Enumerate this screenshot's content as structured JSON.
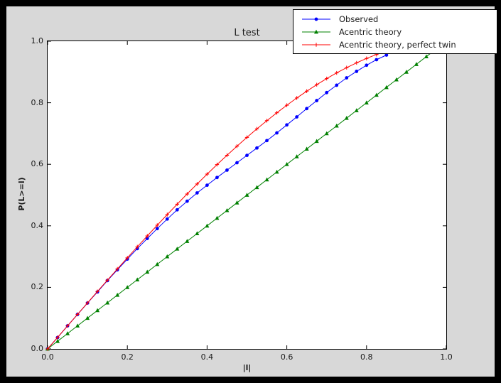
{
  "window": {
    "background_color": "#000000",
    "figure_background_color": "#d8d8d8",
    "axes_background_color": "#ffffff"
  },
  "chart_data": {
    "type": "line",
    "title": "L test",
    "xlabel": "|l|",
    "ylabel": "P(L>=l)",
    "xlim": [
      0,
      1
    ],
    "ylim": [
      0,
      1
    ],
    "xticks": [
      0.0,
      0.2,
      0.4,
      0.6,
      0.8,
      1.0
    ],
    "yticks": [
      0.0,
      0.2,
      0.4,
      0.6,
      0.8,
      1.0
    ],
    "xtick_labels": [
      "0.0",
      "0.2",
      "0.4",
      "0.6",
      "0.8",
      "1.0"
    ],
    "ytick_labels": [
      "0.0",
      "0.2",
      "0.4",
      "0.6",
      "0.8",
      "1.0"
    ],
    "grid": false,
    "legend_position": "upper right",
    "series": [
      {
        "name": "Observed",
        "color": "#0000ff",
        "marker": "circle",
        "x": [
          0,
          0.025,
          0.05,
          0.075,
          0.1,
          0.125,
          0.15,
          0.175,
          0.2,
          0.225,
          0.25,
          0.275,
          0.3,
          0.325,
          0.35,
          0.375,
          0.4,
          0.425,
          0.45,
          0.475,
          0.5,
          0.525,
          0.55,
          0.575,
          0.6,
          0.625,
          0.65,
          0.675,
          0.7,
          0.725,
          0.75,
          0.775,
          0.8,
          0.825,
          0.85
        ],
        "y": [
          0,
          0.037,
          0.075,
          0.112,
          0.149,
          0.185,
          0.222,
          0.257,
          0.292,
          0.326,
          0.359,
          0.391,
          0.422,
          0.452,
          0.48,
          0.507,
          0.532,
          0.557,
          0.581,
          0.605,
          0.629,
          0.653,
          0.677,
          0.702,
          0.728,
          0.754,
          0.781,
          0.807,
          0.833,
          0.857,
          0.881,
          0.902,
          0.922,
          0.94,
          0.955
        ]
      },
      {
        "name": "Acentric theory",
        "color": "#008000",
        "marker": "triangle_up",
        "x": [
          0,
          0.025,
          0.05,
          0.075,
          0.1,
          0.125,
          0.15,
          0.175,
          0.2,
          0.225,
          0.25,
          0.275,
          0.3,
          0.325,
          0.35,
          0.375,
          0.4,
          0.425,
          0.45,
          0.475,
          0.5,
          0.525,
          0.55,
          0.575,
          0.6,
          0.625,
          0.65,
          0.675,
          0.7,
          0.725,
          0.75,
          0.775,
          0.8,
          0.825,
          0.85,
          0.875,
          0.9,
          0.925,
          0.95,
          0.975,
          1.0
        ],
        "y": [
          0,
          0.025,
          0.05,
          0.075,
          0.1,
          0.125,
          0.15,
          0.175,
          0.2,
          0.225,
          0.25,
          0.275,
          0.3,
          0.325,
          0.35,
          0.375,
          0.4,
          0.425,
          0.45,
          0.475,
          0.5,
          0.525,
          0.55,
          0.575,
          0.6,
          0.625,
          0.65,
          0.675,
          0.7,
          0.725,
          0.75,
          0.775,
          0.8,
          0.825,
          0.85,
          0.875,
          0.9,
          0.925,
          0.95,
          0.975,
          1.0
        ]
      },
      {
        "name": "Acentric theory, perfect twin",
        "color": "#ff0000",
        "marker": "plus",
        "x": [
          0,
          0.025,
          0.05,
          0.075,
          0.1,
          0.125,
          0.15,
          0.175,
          0.2,
          0.225,
          0.25,
          0.275,
          0.3,
          0.325,
          0.35,
          0.375,
          0.4,
          0.425,
          0.45,
          0.475,
          0.5,
          0.525,
          0.55,
          0.575,
          0.6,
          0.625,
          0.65,
          0.675,
          0.7,
          0.725,
          0.75,
          0.775,
          0.8,
          0.825,
          0.85,
          0.875,
          0.9,
          0.925,
          0.95,
          0.975,
          1.0
        ],
        "y": [
          0,
          0.0375,
          0.0749,
          0.1123,
          0.1495,
          0.1865,
          0.2233,
          0.2598,
          0.296,
          0.3318,
          0.3672,
          0.4021,
          0.4365,
          0.4703,
          0.5036,
          0.5361,
          0.568,
          0.5991,
          0.6294,
          0.6589,
          0.6875,
          0.7151,
          0.7418,
          0.7674,
          0.792,
          0.8154,
          0.8377,
          0.8587,
          0.8785,
          0.897,
          0.9141,
          0.9298,
          0.944,
          0.9567,
          0.9679,
          0.9775,
          0.9855,
          0.9918,
          0.9963,
          0.9991,
          1.0
        ]
      }
    ]
  }
}
